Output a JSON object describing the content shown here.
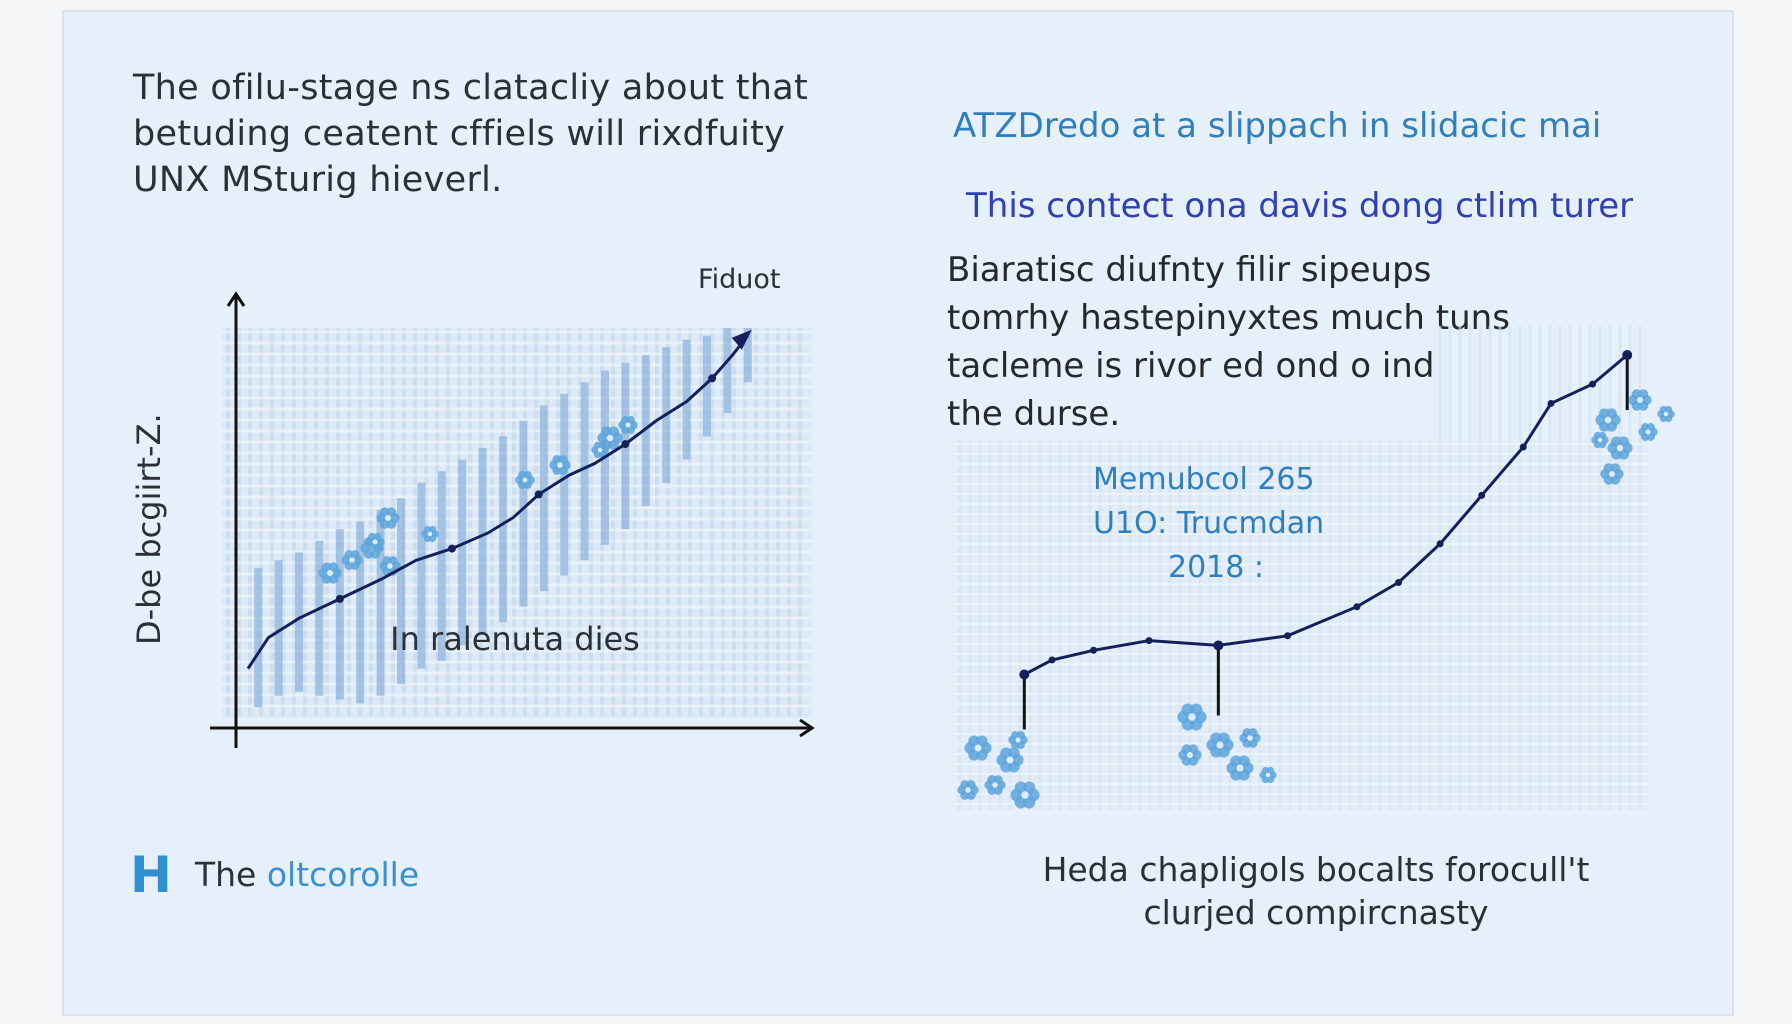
{
  "left_panel": {
    "intro_lines": [
      "The ofilu-stage ns clatacliy about that",
      "betuding ceatent cffiels will rixdfuity",
      "UNX MSturig hieverl."
    ],
    "legend": {
      "marker": "H",
      "text_prefix": "The ",
      "text_accent": "oltcorolle"
    }
  },
  "right_panel": {
    "title": "ATZDredo at a slippach in slidacic mai",
    "subtitle": "This contect ona davis dong ctlim turer",
    "description_lines": [
      "Biaratisc diufnty filir sipeups",
      "tomrhy hastepinyxtes much tuns",
      "tacleme is rivor ed ond o ind",
      "the durse."
    ],
    "annotation_lines": [
      "Memubcol 265",
      "U1O: Trucmdan",
      "2018 :"
    ],
    "caption_lines": [
      "Heda chapligols bocalts forocull't",
      "clurjed compircnasty"
    ]
  },
  "colors": {
    "line": "#15205a",
    "bars": "#8fb4dc",
    "flower": "#5ea4dc",
    "accent_blue": "#2f7fbf"
  },
  "chart_data": [
    {
      "type": "line",
      "title": "",
      "xlabel": "In ralenuta dies",
      "ylabel": "D-be bcgiirt-Z.",
      "corner_label": "Fiduot",
      "xlim": [
        0,
        100
      ],
      "ylim": [
        0,
        100
      ],
      "grid": true,
      "series": [
        {
          "x": [
            0,
            4,
            10,
            18,
            26,
            33,
            40,
            47,
            52,
            57,
            63,
            68,
            74,
            80,
            86,
            91,
            95,
            98
          ],
          "y": [
            12,
            20,
            25,
            30,
            35,
            40,
            43,
            47,
            51,
            57,
            62,
            65,
            70,
            76,
            81,
            87,
            93,
            98
          ]
        }
      ],
      "bars": {
        "x": [
          2,
          6,
          10,
          14,
          18,
          22,
          26,
          30,
          34,
          38,
          42,
          46,
          50,
          54,
          58,
          62,
          66,
          70,
          74,
          78,
          82,
          86,
          90,
          94,
          98
        ],
        "low": [
          2,
          5,
          6,
          5,
          4,
          3,
          5,
          8,
          12,
          14,
          18,
          21,
          24,
          28,
          32,
          36,
          40,
          44,
          48,
          54,
          60,
          66,
          72,
          78,
          86
        ],
        "high": [
          38,
          40,
          42,
          45,
          48,
          50,
          53,
          56,
          60,
          63,
          66,
          69,
          72,
          76,
          80,
          83,
          86,
          89,
          91,
          93,
          95,
          97,
          98,
          100,
          100
        ]
      }
    },
    {
      "type": "line",
      "title": "",
      "xlabel": "",
      "ylabel": "",
      "xlim": [
        0,
        100
      ],
      "ylim": [
        0,
        100
      ],
      "grid": true,
      "series": [
        {
          "x": [
            10,
            14,
            20,
            28,
            38,
            48,
            58,
            64,
            70,
            76,
            82,
            86,
            92,
            97
          ],
          "y": [
            28,
            31,
            33,
            35,
            34,
            36,
            42,
            47,
            55,
            65,
            75,
            84,
            88,
            94
          ]
        }
      ],
      "highlighted_points": [
        {
          "x": 10,
          "y": 28
        },
        {
          "x": 38,
          "y": 34
        },
        {
          "x": 97,
          "y": 94
        }
      ]
    }
  ]
}
